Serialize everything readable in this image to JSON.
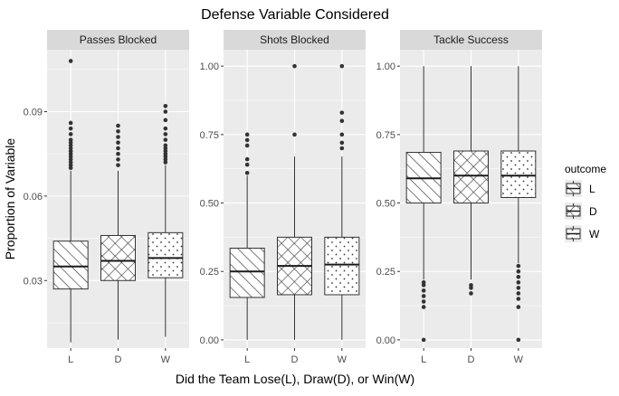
{
  "chart_data": {
    "type": "box",
    "title": "Defense Variable Considered",
    "xlabel": "Did the Team Lose(L), Draw(D), or Win(W)",
    "ylabel": "Proportion of Variable",
    "categories": [
      "L",
      "D",
      "W"
    ],
    "legend": {
      "title": "outcome",
      "placement": "right",
      "entries": [
        {
          "label": "L",
          "pattern": "stripes"
        },
        {
          "label": "D",
          "pattern": "crosshatch"
        },
        {
          "label": "W",
          "pattern": "dots"
        }
      ]
    },
    "colors": {
      "panel_bg": "#ebebeb",
      "strip_bg": "#d9d9d9",
      "grid": "#ffffff",
      "box_fill": "#ffffff",
      "box_line": "#333333"
    },
    "facets": [
      {
        "label": "Passes Blocked",
        "ylim": [
          0.006,
          0.112
        ],
        "yticks": [
          0.03,
          0.06,
          0.09
        ],
        "ytick_labels": [
          "0.03",
          "0.06",
          "0.09"
        ],
        "boxes": [
          {
            "category": "L",
            "min": 0.008,
            "q1": 0.027,
            "median": 0.035,
            "q3": 0.044,
            "max": 0.069,
            "outliers": [
              0.07,
              0.071,
              0.072,
              0.073,
              0.074,
              0.075,
              0.076,
              0.077,
              0.078,
              0.079,
              0.08,
              0.082,
              0.084,
              0.086,
              0.108
            ]
          },
          {
            "category": "D",
            "min": 0.009,
            "q1": 0.03,
            "median": 0.037,
            "q3": 0.046,
            "max": 0.069,
            "outliers": [
              0.071,
              0.073,
              0.075,
              0.077,
              0.079,
              0.081,
              0.083,
              0.085
            ]
          },
          {
            "category": "W",
            "min": 0.01,
            "q1": 0.031,
            "median": 0.038,
            "q3": 0.047,
            "max": 0.071,
            "outliers": [
              0.072,
              0.073,
              0.074,
              0.075,
              0.076,
              0.077,
              0.078,
              0.08,
              0.082,
              0.084,
              0.087,
              0.09,
              0.092
            ]
          }
        ]
      },
      {
        "label": "Shots Blocked",
        "ylim": [
          -0.03,
          1.06
        ],
        "yticks": [
          0,
          0.25,
          0.5,
          0.75,
          1
        ],
        "ytick_labels": [
          "0.00",
          "0.25",
          "0.50",
          "0.75",
          "1.00"
        ],
        "boxes": [
          {
            "category": "L",
            "min": 0,
            "q1": 0.155,
            "median": 0.25,
            "q3": 0.335,
            "max": 0.6,
            "outliers": [
              0.61,
              0.64,
              0.66,
              0.71,
              0.73,
              0.75
            ]
          },
          {
            "category": "D",
            "min": 0,
            "q1": 0.165,
            "median": 0.27,
            "q3": 0.375,
            "max": 0.67,
            "outliers": [
              0.75,
              1.0
            ]
          },
          {
            "category": "W",
            "min": 0,
            "q1": 0.165,
            "median": 0.275,
            "q3": 0.375,
            "max": 0.67,
            "outliers": [
              0.7,
              0.72,
              0.75,
              0.8,
              0.83,
              1.0
            ]
          }
        ]
      },
      {
        "label": "Tackle Success",
        "ylim": [
          -0.03,
          1.06
        ],
        "yticks": [
          0,
          0.25,
          0.5,
          0.75,
          1
        ],
        "ytick_labels": [
          "0.00",
          "0.25",
          "0.50",
          "0.75",
          "1.00"
        ],
        "boxes": [
          {
            "category": "L",
            "min": 0.22,
            "q1": 0.5,
            "median": 0.59,
            "q3": 0.685,
            "max": 1.0,
            "outliers": [
              0.0,
              0.12,
              0.14,
              0.16,
              0.18,
              0.2,
              0.21
            ]
          },
          {
            "category": "D",
            "min": 0.22,
            "q1": 0.5,
            "median": 0.6,
            "q3": 0.69,
            "max": 1.0,
            "outliers": [
              0.17,
              0.19,
              0.2
            ]
          },
          {
            "category": "W",
            "min": 0.28,
            "q1": 0.52,
            "median": 0.6,
            "q3": 0.69,
            "max": 1.0,
            "outliers": [
              0.0,
              0.12,
              0.15,
              0.17,
              0.19,
              0.21,
              0.23,
              0.25,
              0.27
            ]
          }
        ]
      }
    ]
  }
}
